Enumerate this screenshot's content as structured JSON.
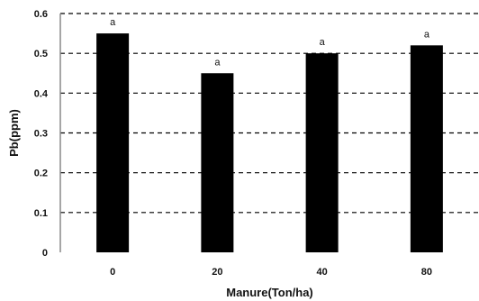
{
  "chart_data": {
    "type": "bar",
    "categories": [
      "0",
      "20",
      "40",
      "80"
    ],
    "values": [
      0.55,
      0.45,
      0.5,
      0.52
    ],
    "letters": [
      "a",
      "a",
      "a",
      "a"
    ],
    "xlabel": "Manure(Ton/ha)",
    "ylabel": "Pb(ppm)",
    "ylim": [
      0,
      0.6
    ],
    "yticks": [
      "0",
      "0.1",
      "0.2",
      "0.3",
      "0.4",
      "0.5",
      "0.6"
    ],
    "grid": true,
    "grid_style": "dashed",
    "bar_color": "#000000"
  }
}
